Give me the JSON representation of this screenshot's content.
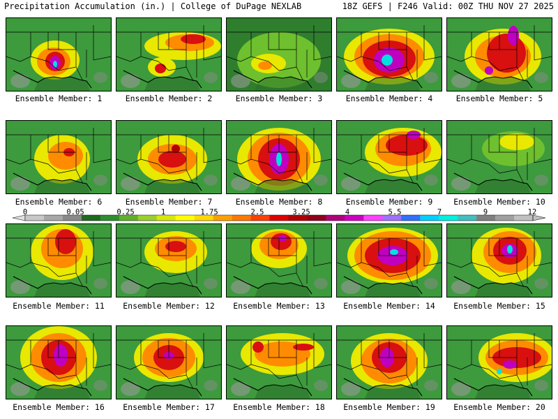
{
  "header": {
    "title": "Precipitation Accumulation (in.) | College of DuPage NEXLAB",
    "run_info": "18Z GEFS | F246 Valid: 00Z THU NOV 27 2025"
  },
  "panel_label_prefix": "Ensemble Member: ",
  "members": [
    {
      "label": "Ensemble Member: 1",
      "base": "#3d9a3d",
      "blobs": [
        [
          "#e8e800",
          70,
          60,
          35,
          28
        ],
        [
          "#ff8c00",
          68,
          62,
          24,
          20
        ],
        [
          "#d81010",
          70,
          62,
          14,
          14
        ],
        [
          "#c000c0",
          70,
          64,
          8,
          10
        ],
        [
          "#00e0e0",
          70,
          66,
          3,
          5
        ]
      ]
    },
    {
      "label": "Ensemble Member: 2",
      "base": "#3d9a3d",
      "blobs": [
        [
          "#e8e800",
          95,
          40,
          55,
          20
        ],
        [
          "#ff8c00",
          105,
          35,
          35,
          12
        ],
        [
          "#d81010",
          110,
          30,
          18,
          7
        ],
        [
          "#e8e800",
          65,
          70,
          20,
          14
        ],
        [
          "#d81010",
          63,
          72,
          8,
          7
        ]
      ]
    },
    {
      "label": "Ensemble Member: 3",
      "base": "#2e7e2e",
      "blobs": [
        [
          "#6ec02e",
          75,
          60,
          60,
          40
        ],
        [
          "#e8e800",
          60,
          65,
          25,
          14
        ],
        [
          "#ff8c00",
          55,
          68,
          10,
          6
        ]
      ]
    },
    {
      "label": "Ensemble Member: 4",
      "base": "#3d9a3d",
      "blobs": [
        [
          "#e8e800",
          75,
          55,
          65,
          40
        ],
        [
          "#ff8c00",
          75,
          55,
          50,
          32
        ],
        [
          "#d81010",
          75,
          58,
          38,
          26
        ],
        [
          "#c000c0",
          75,
          60,
          22,
          18
        ],
        [
          "#00e0e0",
          72,
          60,
          8,
          8
        ]
      ]
    },
    {
      "label": "Ensemble Member: 5",
      "base": "#3d9a3d",
      "blobs": [
        [
          "#e8e800",
          80,
          55,
          55,
          40
        ],
        [
          "#ff8c00",
          80,
          55,
          40,
          30
        ],
        [
          "#d81010",
          85,
          50,
          28,
          28
        ],
        [
          "#c000c0",
          95,
          25,
          8,
          14
        ],
        [
          "#c000c0",
          60,
          75,
          6,
          6
        ]
      ]
    },
    {
      "label": "Ensemble Member: 6",
      "base": "#3d9a3d",
      "blobs": [
        [
          "#e8e800",
          80,
          55,
          40,
          35
        ],
        [
          "#ff8c00",
          85,
          50,
          25,
          20
        ],
        [
          "#d81010",
          90,
          45,
          8,
          6
        ]
      ]
    },
    {
      "label": "Ensemble Member: 7",
      "base": "#3d9a3d",
      "blobs": [
        [
          "#e8e800",
          80,
          55,
          50,
          35
        ],
        [
          "#ff8c00",
          80,
          55,
          35,
          22
        ],
        [
          "#d81010",
          80,
          55,
          20,
          12
        ],
        [
          "#b00000",
          85,
          40,
          6,
          6
        ]
      ]
    },
    {
      "label": "Ensemble Member: 8",
      "base": "#3d9a3d",
      "blobs": [
        [
          "#e8e800",
          75,
          55,
          60,
          45
        ],
        [
          "#ff8c00",
          75,
          55,
          45,
          38
        ],
        [
          "#d81010",
          75,
          55,
          30,
          30
        ],
        [
          "#c000c0",
          75,
          55,
          14,
          22
        ],
        [
          "#00e0e0",
          75,
          55,
          4,
          10
        ]
      ]
    },
    {
      "label": "Ensemble Member: 9",
      "base": "#3d9a3d",
      "blobs": [
        [
          "#e8e800",
          95,
          45,
          55,
          35
        ],
        [
          "#ff8c00",
          95,
          40,
          40,
          25
        ],
        [
          "#d81010",
          100,
          35,
          30,
          15
        ],
        [
          "#c000c0",
          110,
          20,
          10,
          6
        ]
      ]
    },
    {
      "label": "Ensemble Member: 10",
      "base": "#3d9a3d",
      "blobs": [
        [
          "#6ec02e",
          95,
          40,
          45,
          25
        ],
        [
          "#e8e800",
          100,
          30,
          25,
          12
        ]
      ]
    },
    {
      "label": "Ensemble Member: 11",
      "base": "#3d9a3d",
      "blobs": [
        [
          "#e8e800",
          80,
          40,
          45,
          40
        ],
        [
          "#ff8c00",
          80,
          35,
          30,
          28
        ],
        [
          "#d81010",
          85,
          25,
          15,
          18
        ]
      ]
    },
    {
      "label": "Ensemble Member: 12",
      "base": "#3d9a3d",
      "blobs": [
        [
          "#e8e800",
          85,
          40,
          45,
          30
        ],
        [
          "#ff8c00",
          85,
          35,
          30,
          18
        ],
        [
          "#d81010",
          85,
          32,
          15,
          8
        ]
      ]
    },
    {
      "label": "Ensemble Member: 13",
      "base": "#3d9a3d",
      "blobs": [
        [
          "#e8e800",
          75,
          35,
          40,
          28
        ],
        [
          "#ff8c00",
          75,
          30,
          28,
          20
        ],
        [
          "#d81010",
          78,
          25,
          15,
          12
        ],
        [
          "#c000c0",
          80,
          20,
          6,
          5
        ]
      ]
    },
    {
      "label": "Ensemble Member: 14",
      "base": "#3d9a3d",
      "blobs": [
        [
          "#e8e800",
          80,
          45,
          65,
          40
        ],
        [
          "#ff8c00",
          80,
          45,
          55,
          35
        ],
        [
          "#d81010",
          80,
          45,
          40,
          25
        ],
        [
          "#c000c0",
          80,
          45,
          22,
          14
        ],
        [
          "#00e0e0",
          82,
          40,
          6,
          4
        ]
      ]
    },
    {
      "label": "Ensemble Member: 15",
      "base": "#3d9a3d",
      "blobs": [
        [
          "#e8e800",
          85,
          45,
          50,
          40
        ],
        [
          "#ff8c00",
          90,
          40,
          38,
          30
        ],
        [
          "#d81010",
          90,
          38,
          24,
          20
        ],
        [
          "#c000c0",
          90,
          38,
          12,
          10
        ],
        [
          "#00e0e0",
          90,
          36,
          4,
          6
        ]
      ]
    },
    {
      "label": "Ensemble Member: 16",
      "base": "#3d9a3d",
      "blobs": [
        [
          "#e8e800",
          75,
          45,
          55,
          45
        ],
        [
          "#ff8c00",
          75,
          45,
          40,
          35
        ],
        [
          "#d81010",
          75,
          45,
          25,
          25
        ],
        [
          "#c000c0",
          78,
          42,
          10,
          16
        ]
      ]
    },
    {
      "label": "Ensemble Member: 17",
      "base": "#3d9a3d",
      "blobs": [
        [
          "#e8e800",
          75,
          45,
          50,
          35
        ],
        [
          "#ff8c00",
          75,
          45,
          38,
          28
        ],
        [
          "#d81010",
          75,
          45,
          22,
          18
        ],
        [
          "#c000c0",
          75,
          42,
          8,
          5
        ]
      ]
    },
    {
      "label": "Ensemble Member: 18",
      "base": "#3d9a3d",
      "blobs": [
        [
          "#e8e800",
          80,
          40,
          60,
          30
        ],
        [
          "#ff8c00",
          80,
          40,
          40,
          18
        ],
        [
          "#d81010",
          110,
          30,
          15,
          5
        ],
        [
          "#d81010",
          45,
          30,
          8,
          8
        ]
      ]
    },
    {
      "label": "Ensemble Member: 19",
      "base": "#3d9a3d",
      "blobs": [
        [
          "#e8e800",
          75,
          50,
          55,
          40
        ],
        [
          "#ff8c00",
          75,
          50,
          40,
          32
        ],
        [
          "#d81010",
          75,
          45,
          25,
          22
        ],
        [
          "#c000c0",
          72,
          45,
          10,
          14
        ]
      ]
    },
    {
      "label": "Ensemble Member: 20",
      "base": "#3d9a3d",
      "blobs": [
        [
          "#e8e800",
          100,
          45,
          55,
          35
        ],
        [
          "#ff8c00",
          100,
          45,
          45,
          25
        ],
        [
          "#d81010",
          100,
          45,
          35,
          15
        ],
        [
          "#c000c0",
          90,
          55,
          10,
          6
        ],
        [
          "#00e0e0",
          75,
          65,
          4,
          4
        ]
      ]
    }
  ],
  "legend": {
    "tick_labels": [
      "0",
      "0.05",
      "0.25",
      "1",
      "1.75",
      "2.5",
      "3.25",
      "4",
      "5.5",
      "7",
      "9",
      "12"
    ],
    "colors": [
      "#c8c8c8",
      "#a8a8a8",
      "#8a8a8a",
      "#1e6a1e",
      "#2e8e2e",
      "#5fb02a",
      "#9ad02a",
      "#d8e80a",
      "#ffff00",
      "#ffd800",
      "#ffa000",
      "#ff7800",
      "#ff4000",
      "#e00000",
      "#b00000",
      "#900018",
      "#b0007a",
      "#d000c0",
      "#ff40ff",
      "#a070ff",
      "#3070ff",
      "#00d0ff",
      "#00f0e0",
      "#40c0c0",
      "#808080",
      "#a0a0a0",
      "#c0c0c0"
    ]
  }
}
